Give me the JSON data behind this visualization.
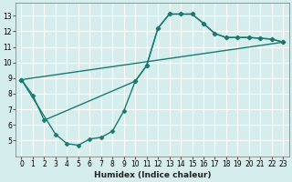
{
  "xlabel": "Humidex (Indice chaleur)",
  "bg_color": "#d5eded",
  "grid_color": "#ffffff",
  "line_color": "#1a7a6e",
  "marker": "D",
  "markersize": 2.5,
  "linewidth": 1.0,
  "xlim": [
    -0.5,
    23.5
  ],
  "ylim": [
    4.0,
    13.8
  ],
  "xticks": [
    0,
    1,
    2,
    3,
    4,
    5,
    6,
    7,
    8,
    9,
    10,
    11,
    12,
    13,
    14,
    15,
    16,
    17,
    18,
    19,
    20,
    21,
    22,
    23
  ],
  "yticks": [
    5,
    6,
    7,
    8,
    9,
    10,
    11,
    12,
    13
  ],
  "series": [
    {
      "x": [
        0,
        1,
        2,
        10,
        11,
        12,
        13,
        14,
        15,
        16,
        17,
        18,
        19,
        20,
        21,
        22,
        23
      ],
      "y": [
        8.9,
        7.9,
        6.3,
        8.8,
        9.8,
        12.2,
        13.1,
        13.1,
        13.1,
        12.5,
        11.85,
        11.6,
        11.6,
        11.6,
        11.55,
        11.5,
        11.3
      ]
    },
    {
      "x": [
        0,
        3,
        4,
        5,
        6,
        7,
        8,
        9,
        10,
        11,
        12,
        13,
        14,
        15,
        16,
        17,
        18,
        19,
        20,
        21,
        22,
        23
      ],
      "y": [
        8.9,
        5.4,
        4.8,
        4.7,
        5.1,
        5.2,
        5.6,
        6.9,
        8.8,
        9.8,
        12.2,
        13.1,
        13.1,
        13.1,
        12.5,
        11.85,
        11.6,
        11.6,
        11.6,
        11.55,
        11.5,
        11.3
      ]
    },
    {
      "x": [
        0,
        23
      ],
      "y": [
        8.9,
        11.3
      ]
    }
  ]
}
